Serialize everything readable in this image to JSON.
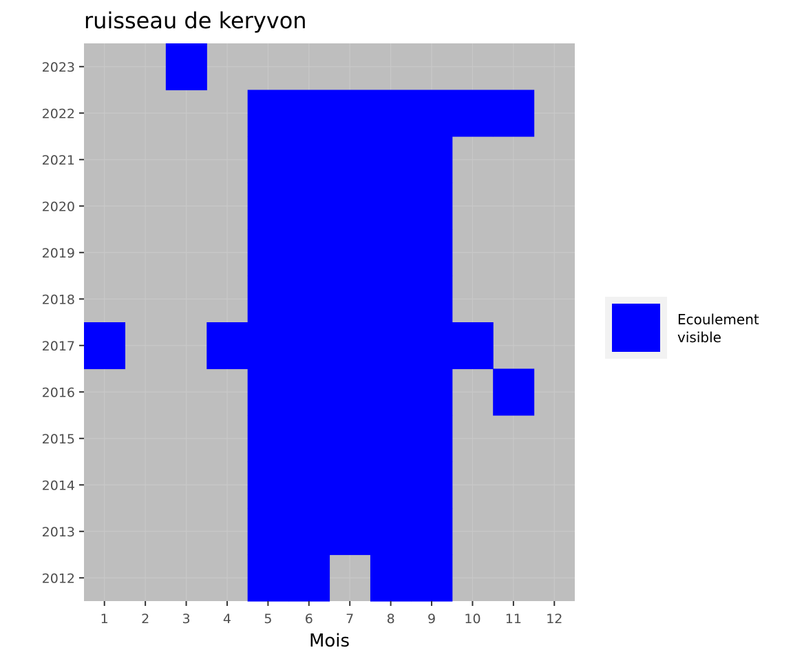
{
  "chart_data": {
    "type": "heatmap",
    "title": "ruisseau de keryvon",
    "xlabel": "Mois",
    "ylabel": "",
    "x_categories": [
      "1",
      "2",
      "3",
      "4",
      "5",
      "6",
      "7",
      "8",
      "9",
      "10",
      "11",
      "12"
    ],
    "y_categories": [
      "2012",
      "2013",
      "2014",
      "2015",
      "2016",
      "2017",
      "2018",
      "2019",
      "2020",
      "2021",
      "2022",
      "2023"
    ],
    "fill_category": "Ecoulement visible",
    "cells": [
      {
        "year": "2012",
        "months": [
          5,
          6,
          8,
          9
        ]
      },
      {
        "year": "2013",
        "months": [
          5,
          6,
          7,
          8,
          9
        ]
      },
      {
        "year": "2014",
        "months": [
          5,
          6,
          7,
          8,
          9
        ]
      },
      {
        "year": "2015",
        "months": [
          5,
          6,
          7,
          8,
          9
        ]
      },
      {
        "year": "2016",
        "months": [
          5,
          6,
          7,
          8,
          9,
          11
        ]
      },
      {
        "year": "2017",
        "months": [
          1,
          4,
          5,
          6,
          7,
          8,
          9,
          10
        ]
      },
      {
        "year": "2018",
        "months": [
          5,
          6,
          7,
          8,
          9
        ]
      },
      {
        "year": "2019",
        "months": [
          5,
          6,
          7,
          8,
          9
        ]
      },
      {
        "year": "2020",
        "months": [
          5,
          6,
          7,
          8,
          9
        ]
      },
      {
        "year": "2021",
        "months": [
          5,
          6,
          7,
          8,
          9
        ]
      },
      {
        "year": "2022",
        "months": [
          5,
          6,
          7,
          8,
          9,
          10,
          11
        ]
      },
      {
        "year": "2023",
        "months": [
          3
        ]
      }
    ],
    "legend": {
      "position": "right",
      "entries": [
        {
          "label_lines": [
            "Ecoulement",
            "visible"
          ],
          "color": "#0000FF"
        }
      ]
    },
    "colors": {
      "panel_background": "#BEBEBE",
      "cell_fill": "#0000FF",
      "legend_key_background": "#F2F2F2",
      "tick_label": "#4D4D4D",
      "grid": "#C8C8C8"
    },
    "grid": true
  }
}
